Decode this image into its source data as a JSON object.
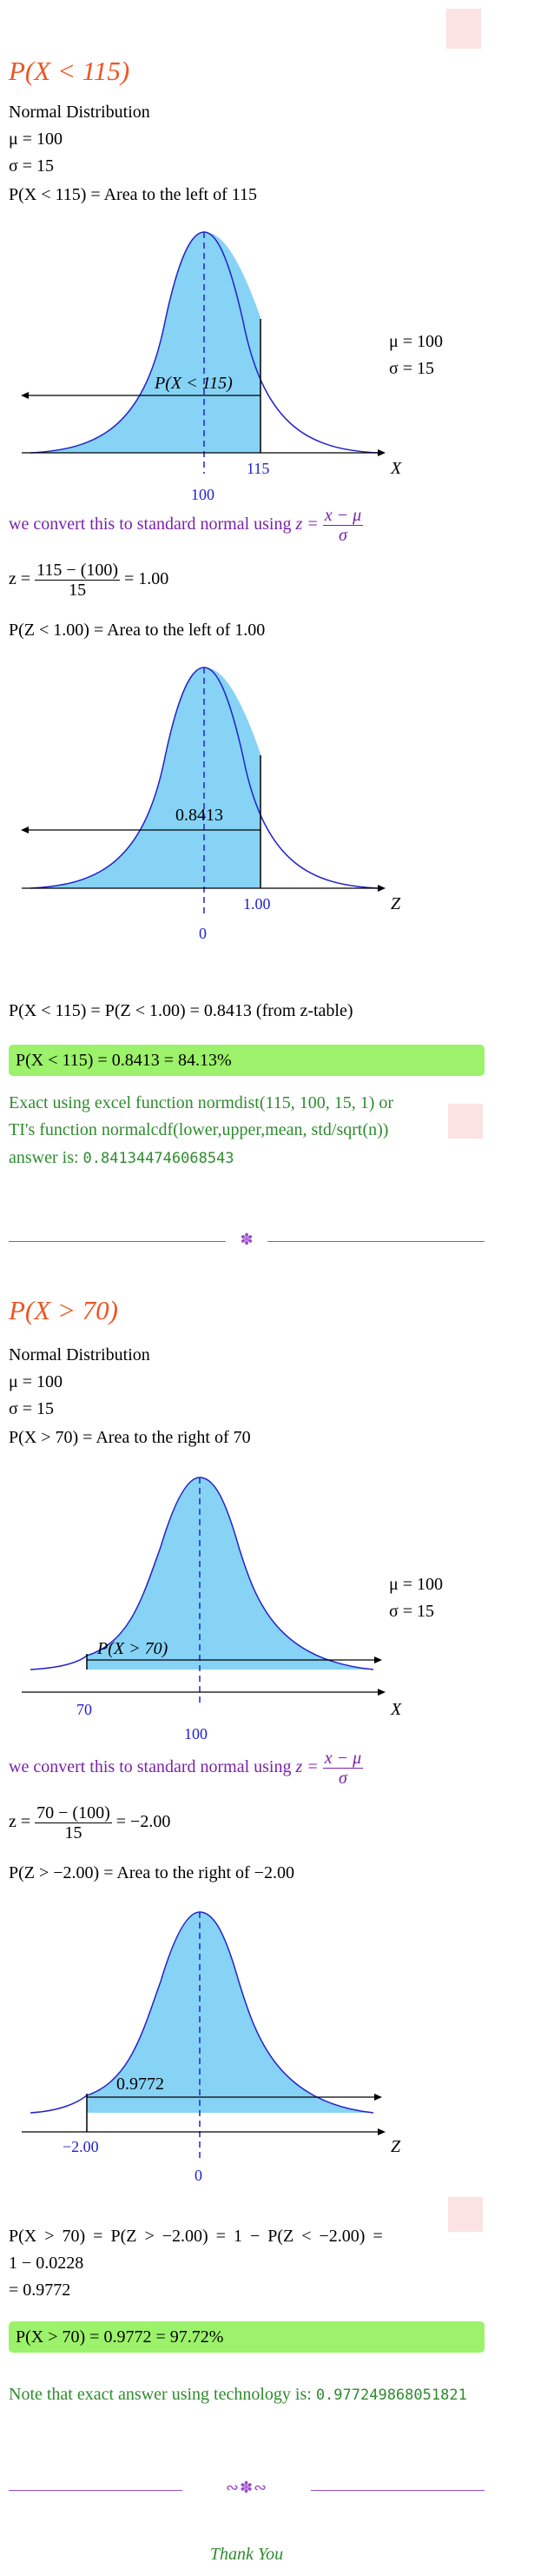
{
  "section1": {
    "heading": "P(X < 115)",
    "dist_name": "Normal Distribution",
    "mu_line": "μ = 100",
    "sigma_line": "σ = 15",
    "area_line": "P(X < 115) = Area to the left of 115",
    "chart1": {
      "region_label": "P(X < 115)",
      "mean_label": "100",
      "x_label": "115",
      "axis_var": "X",
      "mu": "μ = 100",
      "sigma": "σ = 15"
    },
    "convert_text": "we convert this to standard normal using",
    "z_lhs": "z =",
    "z_formula_num": "x − μ",
    "z_formula_den": "σ",
    "z_calc_lhs": "z =",
    "z_calc_num": "115 − (100)",
    "z_calc_den": "15",
    "z_calc_rhs": "= 1.00",
    "z_area_line": "P(Z < 1.00) = Area to the left of 1.00",
    "chart2": {
      "region_label": "0.8413",
      "mean_label": "0",
      "z_label": "1.00",
      "axis_var": "Z"
    },
    "result_line": "P(X < 115) = P(Z < 1.00) = 0.8413 (from z-table)",
    "answer": "P(X < 115) = 0.8413 = 84.13%",
    "exact_line1": "Exact using excel function normdist(115, 100, 15, 1) or",
    "exact_line2": "TI's function normalcdf(lower,upper,mean, std/sqrt(n))",
    "exact_prefix": "answer is:",
    "exact_value": "0.841344746068543"
  },
  "section2": {
    "heading": "P(X > 70)",
    "dist_name": "Normal Distribution",
    "mu_line": "μ = 100",
    "sigma_line": "σ = 15",
    "area_line": "P(X > 70) = Area to the right of 70",
    "chart1": {
      "region_label": "P(X > 70)",
      "mean_label": "100",
      "x_label": "70",
      "axis_var": "X",
      "mu": "μ = 100",
      "sigma": "σ = 15"
    },
    "convert_text": "we convert this to standard normal using",
    "z_lhs": "z =",
    "z_formula_num": "x − μ",
    "z_formula_den": "σ",
    "z_calc_lhs": "z =",
    "z_calc_num": "70 − (100)",
    "z_calc_den": "15",
    "z_calc_rhs": "= −2.00",
    "z_area_line": "P(Z > −2.00) = Area to the right of −2.00",
    "chart2": {
      "region_label": "0.9772",
      "mean_label": "0",
      "z_label": "−2.00",
      "axis_var": "Z"
    },
    "result_line1": "P(X > 70) = P(Z > −2.00) = 1 − P(Z < −2.00) =",
    "result_line2": "1 − 0.0228",
    "result_line3": "= 0.9772",
    "answer": "P(X > 70) = 0.9772 = 97.72%",
    "note_prefix": "Note that exact answer using technology is:",
    "note_value": "0.977249868051821"
  },
  "closing": "Thank You",
  "colors": {
    "heading": "#ee5522",
    "purple": "#7a22aa",
    "green": "#2e8b2e",
    "highlight": "#9cf26a",
    "fill": "#87d3f5",
    "curve": "#2222cc"
  }
}
